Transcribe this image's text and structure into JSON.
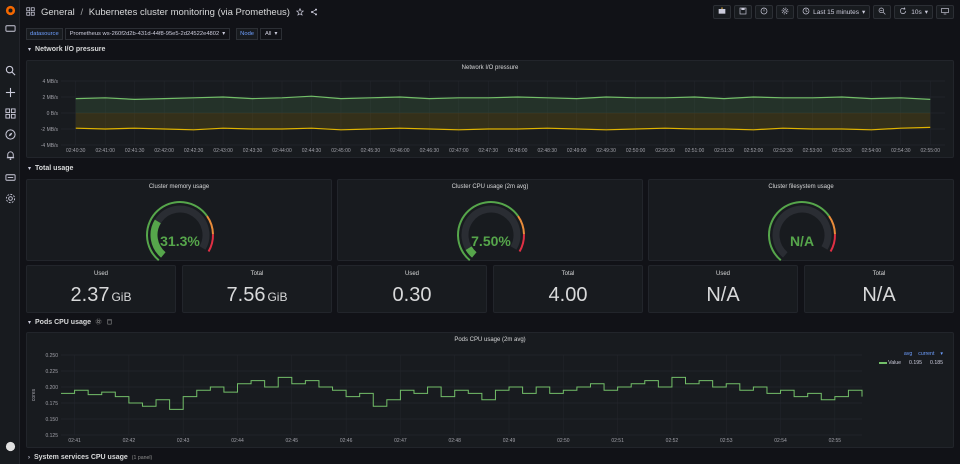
{
  "header": {
    "breadcrumb_folder": "General",
    "breadcrumb_separator": "/",
    "dashboard_title": "Kubernetes cluster monitoring (via Prometheus)",
    "time_range": "Last 15 minutes",
    "refresh_interval": "10s"
  },
  "variables": {
    "datasource_label": "datasource",
    "datasource_value": "Prometheus ws-260f2d2b-431d-44f8-95e5-2d24522e4802",
    "node_label": "Node",
    "node_value": "All"
  },
  "rows": {
    "network": "Network I/O pressure",
    "total": "Total usage",
    "pods": "Pods CPU usage",
    "system": "System services CPU usage",
    "system_count": "(1 panel)"
  },
  "network_panel": {
    "title": "Network I/O pressure",
    "y_ticks": [
      "4 MB/s",
      "2 MB/s",
      "0 B/s",
      "-2 MB/s",
      "-4 MB/s"
    ],
    "x_ticks": [
      "02:40:30",
      "02:41:00",
      "02:41:30",
      "02:42:00",
      "02:42:30",
      "02:43:00",
      "02:43:30",
      "02:44:00",
      "02:44:30",
      "02:45:00",
      "02:45:30",
      "02:46:00",
      "02:46:30",
      "02:47:00",
      "02:47:30",
      "02:48:00",
      "02:48:30",
      "02:49:00",
      "02:49:30",
      "02:50:00",
      "02:50:30",
      "02:51:00",
      "02:51:30",
      "02:52:00",
      "02:52:30",
      "02:53:00",
      "02:53:30",
      "02:54:00",
      "02:54:30",
      "02:55:00"
    ],
    "colors": {
      "received": "#73bf69",
      "transmitted": "#e0b400"
    }
  },
  "gauges": [
    {
      "title": "Cluster memory usage",
      "value": "31.3%",
      "fraction": 0.313,
      "color": "#56a64b"
    },
    {
      "title": "Cluster CPU usage (2m avg)",
      "value": "7.50%",
      "fraction": 0.075,
      "color": "#56a64b"
    },
    {
      "title": "Cluster filesystem usage",
      "value": "N/A",
      "fraction": 0,
      "color": "#56a64b"
    }
  ],
  "stats": [
    {
      "label": "Used",
      "value": "2.37",
      "unit": "GiB"
    },
    {
      "label": "Total",
      "value": "7.56",
      "unit": "GiB"
    },
    {
      "label": "Used",
      "value": "0.30",
      "unit": ""
    },
    {
      "label": "Total",
      "value": "4.00",
      "unit": ""
    },
    {
      "label": "Used",
      "value": "N/A",
      "unit": ""
    },
    {
      "label": "Total",
      "value": "N/A",
      "unit": ""
    }
  ],
  "pods_panel": {
    "title": "Pods CPU usage (2m avg)",
    "y_axis_label": "cores",
    "y_ticks": [
      "0.250",
      "0.225",
      "0.200",
      "0.175",
      "0.150",
      "0.125"
    ],
    "x_ticks": [
      "02:41",
      "02:42",
      "02:43",
      "02:44",
      "02:45",
      "02:46",
      "02:47",
      "02:48",
      "02:49",
      "02:50",
      "02:51",
      "02:52",
      "02:53",
      "02:54",
      "02:55"
    ],
    "legend": {
      "col_avg": "avg",
      "col_current": "current",
      "series_name": "Value",
      "avg": "0.195",
      "current": "0.185"
    }
  },
  "chart_data": [
    {
      "type": "area",
      "title": "Network I/O pressure",
      "x": [
        "02:40:30",
        "02:41:00",
        "02:41:30",
        "02:42:00",
        "02:42:30",
        "02:43:00",
        "02:43:30",
        "02:44:00",
        "02:44:30",
        "02:45:00",
        "02:45:30",
        "02:46:00",
        "02:46:30",
        "02:47:00",
        "02:47:30",
        "02:48:00",
        "02:48:30",
        "02:49:00",
        "02:49:30",
        "02:50:00",
        "02:50:30",
        "02:51:00",
        "02:51:30",
        "02:52:00",
        "02:52:30",
        "02:53:00",
        "02:53:30",
        "02:54:00",
        "02:54:30",
        "02:55:00"
      ],
      "ylim": [
        -4,
        4
      ],
      "series": [
        {
          "values": [
            1.8,
            1.9,
            1.7,
            1.8,
            1.9,
            2.0,
            1.8,
            1.9,
            2.1,
            1.8,
            1.9,
            2.0,
            1.8,
            1.9,
            1.9,
            2.0,
            1.9,
            1.8,
            2.0,
            1.9,
            1.9,
            2.0,
            1.8,
            2.0,
            1.9,
            1.9,
            2.0,
            1.8,
            1.9,
            1.7
          ]
        },
        {
          "values": [
            -1.9,
            -2.0,
            -1.9,
            -2.0,
            -2.1,
            -1.9,
            -2.0,
            -2.0,
            -1.9,
            -2.1,
            -2.0,
            -1.9,
            -2.0,
            -2.1,
            -2.0,
            -2.0,
            -1.9,
            -2.0,
            -2.1,
            -2.0,
            -1.9,
            -2.0,
            -2.0,
            -2.1,
            -1.9,
            -2.0,
            -2.0,
            -2.1,
            -1.9,
            -1.8
          ]
        }
      ]
    },
    {
      "type": "line",
      "title": "Pods CPU usage (2m avg)",
      "ylabel": "cores",
      "ylim": [
        0.125,
        0.25
      ],
      "x": [
        "02:40:45",
        "02:41:00",
        "02:41:15",
        "02:41:30",
        "02:41:45",
        "02:42:00",
        "02:42:15",
        "02:42:30",
        "02:42:45",
        "02:43:00",
        "02:43:15",
        "02:43:30",
        "02:43:45",
        "02:44:00",
        "02:44:15",
        "02:44:30",
        "02:44:45",
        "02:45:00",
        "02:45:15",
        "02:45:30",
        "02:45:45",
        "02:46:00",
        "02:46:15",
        "02:46:30",
        "02:46:45",
        "02:47:00",
        "02:47:15",
        "02:47:30",
        "02:47:45",
        "02:48:00",
        "02:48:15",
        "02:48:30",
        "02:48:45",
        "02:49:00",
        "02:49:15",
        "02:49:30",
        "02:49:45",
        "02:50:00",
        "02:50:15",
        "02:50:30",
        "02:50:45",
        "02:51:00",
        "02:51:15",
        "02:51:30",
        "02:51:45",
        "02:52:00",
        "02:52:15",
        "02:52:30",
        "02:52:45",
        "02:53:00",
        "02:53:15",
        "02:53:30",
        "02:53:45",
        "02:54:00",
        "02:54:15",
        "02:54:30",
        "02:54:45",
        "02:55:00",
        "02:55:15",
        "02:55:30"
      ],
      "series": [
        {
          "name": "Value",
          "values": [
            0.19,
            0.195,
            0.188,
            0.192,
            0.185,
            0.175,
            0.17,
            0.18,
            0.165,
            0.185,
            0.195,
            0.2,
            0.192,
            0.205,
            0.21,
            0.2,
            0.215,
            0.205,
            0.21,
            0.2,
            0.195,
            0.185,
            0.19,
            0.17,
            0.18,
            0.195,
            0.19,
            0.2,
            0.185,
            0.195,
            0.19,
            0.18,
            0.195,
            0.2,
            0.19,
            0.2,
            0.19,
            0.195,
            0.2,
            0.205,
            0.195,
            0.2,
            0.205,
            0.21,
            0.2,
            0.215,
            0.205,
            0.21,
            0.2,
            0.205,
            0.195,
            0.2,
            0.19,
            0.195,
            0.185,
            0.19,
            0.18,
            0.185,
            0.195,
            0.185
          ]
        }
      ]
    }
  ]
}
